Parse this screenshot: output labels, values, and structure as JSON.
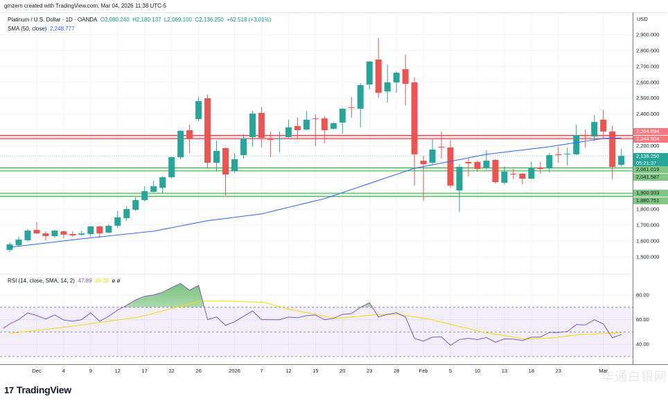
{
  "credit": "gmzern created with TradingView.com, Mar 04, 2026 11:38 UTC-5",
  "legend": {
    "symbol": "Platinum / U.S. Dollar · 1D · OANDA",
    "open": "O2,080.240",
    "high": "H2,180.137",
    "low": "L2,069.100",
    "close": "C2,136.250",
    "change": "+62.518 (+3.01%)",
    "sma_label": "SMA (50, close)",
    "sma_value": "2,248.777"
  },
  "rsi_legend": {
    "label": "RSI (14, close, SMA, 14, 2)",
    "rsi_value": "47.89",
    "sma_value": "49.28",
    "extra": "ø ø"
  },
  "currency": "USD",
  "brand": "TradingView",
  "watermark": "华通白银网",
  "colors": {
    "up": "#26a69a",
    "down": "#ef5350",
    "sma": "#2962ff",
    "rsi": "#7e57c2",
    "rsi_sma": "#f5d90a",
    "resistance": "#f23645",
    "support": "#4caf50"
  },
  "price_tags": [
    {
      "label": "2,264.894",
      "kind": "resistance"
    },
    {
      "label": "2,244.504",
      "kind": "resistance"
    },
    {
      "label": "2,200.000",
      "kind": "plain"
    },
    {
      "label": "2,136.250",
      "sub": "05:21:37",
      "kind": "last"
    },
    {
      "label": "2,061.019",
      "kind": "support"
    },
    {
      "label": "2,041.587",
      "kind": "support"
    },
    {
      "label": "1,900.933",
      "kind": "support"
    },
    {
      "label": "1,880.751",
      "kind": "support"
    }
  ],
  "chart_data": [
    {
      "type": "candlestick",
      "title": "Platinum / U.S. Dollar · 1D · OANDA",
      "ylabel": "USD",
      "ylim": [
        1440,
        2960
      ],
      "yticks": [
        2900,
        2800,
        2700,
        2600,
        2500,
        2400,
        1800,
        1700,
        1600,
        1500
      ],
      "last_price": 2136.25,
      "levels": {
        "resistance": [
          2264.894,
          2244.504
        ],
        "support_upper": [
          2061.019,
          2041.587
        ],
        "support_lower": [
          1900.933,
          1880.751
        ]
      },
      "xticks": [
        {
          "index": 3,
          "label": "Dec"
        },
        {
          "index": 6,
          "label": "4"
        },
        {
          "index": 9,
          "label": "9"
        },
        {
          "index": 12,
          "label": "12"
        },
        {
          "index": 15,
          "label": "17"
        },
        {
          "index": 18,
          "label": "22"
        },
        {
          "index": 21,
          "label": "26"
        },
        {
          "index": 25,
          "label": "2026"
        },
        {
          "index": 28,
          "label": "7"
        },
        {
          "index": 31,
          "label": "12"
        },
        {
          "index": 34,
          "label": "15"
        },
        {
          "index": 37,
          "label": "20"
        },
        {
          "index": 40,
          "label": "23"
        },
        {
          "index": 43,
          "label": "28"
        },
        {
          "index": 46,
          "label": "Feb"
        },
        {
          "index": 49,
          "label": "5"
        },
        {
          "index": 52,
          "label": "10"
        },
        {
          "index": 55,
          "label": "13"
        },
        {
          "index": 58,
          "label": "18"
        },
        {
          "index": 61,
          "label": "23"
        },
        {
          "index": 66,
          "label": "Mar"
        }
      ],
      "ohlc": [
        [
          1544,
          1592,
          1531,
          1579
        ],
        [
          1574,
          1627,
          1566,
          1609
        ],
        [
          1605,
          1675,
          1596,
          1666
        ],
        [
          1670,
          1718,
          1644,
          1648
        ],
        [
          1648,
          1661,
          1605,
          1631
        ],
        [
          1631,
          1670,
          1622,
          1666
        ],
        [
          1661,
          1666,
          1618,
          1640
        ],
        [
          1644,
          1661,
          1627,
          1635
        ],
        [
          1640,
          1666,
          1631,
          1648
        ],
        [
          1644,
          1696,
          1627,
          1692
        ],
        [
          1692,
          1696,
          1622,
          1648
        ],
        [
          1653,
          1705,
          1648,
          1696
        ],
        [
          1696,
          1788,
          1683,
          1749
        ],
        [
          1744,
          1818,
          1727,
          1801
        ],
        [
          1797,
          1875,
          1788,
          1858
        ],
        [
          1858,
          1945,
          1849,
          1914
        ],
        [
          1910,
          1980,
          1906,
          1945
        ],
        [
          1936,
          2011,
          1901,
          2002
        ],
        [
          2002,
          2132,
          1993,
          2128
        ],
        [
          2128,
          2298,
          2115,
          2294
        ],
        [
          2298,
          2333,
          2154,
          2246
        ],
        [
          2368,
          2507,
          2355,
          2481
        ],
        [
          2499,
          2521,
          2063,
          2093
        ],
        [
          2093,
          2233,
          2037,
          2168
        ],
        [
          2185,
          2189,
          1888,
          2019
        ],
        [
          2041,
          2154,
          2032,
          2115
        ],
        [
          2141,
          2272,
          2119,
          2246
        ],
        [
          2254,
          2420,
          2194,
          2403
        ],
        [
          2407,
          2442,
          2189,
          2250
        ],
        [
          2241,
          2289,
          2128,
          2237
        ],
        [
          2241,
          2289,
          2159,
          2246
        ],
        [
          2254,
          2364,
          2250,
          2316
        ],
        [
          2324,
          2377,
          2237,
          2298
        ],
        [
          2302,
          2420,
          2298,
          2364
        ],
        [
          2372,
          2398,
          2198,
          2368
        ],
        [
          2372,
          2385,
          2215,
          2298
        ],
        [
          2307,
          2350,
          2302,
          2342
        ],
        [
          2346,
          2438,
          2276,
          2433
        ],
        [
          2442,
          2507,
          2377,
          2438
        ],
        [
          2433,
          2595,
          2315,
          2582
        ],
        [
          2586,
          2734,
          2556,
          2730
        ],
        [
          2743,
          2878,
          2503,
          2534
        ],
        [
          2542,
          2712,
          2473,
          2599
        ],
        [
          2599,
          2669,
          2534,
          2660
        ],
        [
          2682,
          2774,
          2455,
          2590
        ],
        [
          2599,
          2630,
          1949,
          2146
        ],
        [
          2106,
          2137,
          1853,
          2084
        ],
        [
          2093,
          2246,
          2080,
          2176
        ],
        [
          2194,
          2289,
          2119,
          2189
        ],
        [
          2189,
          2237,
          1936,
          1949
        ],
        [
          1919,
          2084,
          1784,
          2067
        ],
        [
          2098,
          2124,
          2006,
          2089
        ],
        [
          2098,
          2106,
          2037,
          2054
        ],
        [
          2063,
          2172,
          2050,
          2106
        ],
        [
          2111,
          2115,
          1962,
          1971
        ],
        [
          1967,
          2071,
          1954,
          2037
        ],
        [
          2024,
          2054,
          1989,
          2019
        ],
        [
          2024,
          2028,
          1958,
          1993
        ],
        [
          1993,
          2098,
          1989,
          2058
        ],
        [
          2063,
          2098,
          2024,
          2054
        ],
        [
          2058,
          2154,
          2032,
          2141
        ],
        [
          2146,
          2194,
          2093,
          2141
        ],
        [
          2146,
          2189,
          2076,
          2150
        ],
        [
          2146,
          2333,
          2141,
          2268
        ],
        [
          2246,
          2302,
          2189,
          2241
        ],
        [
          2259,
          2394,
          2229,
          2350
        ],
        [
          2364,
          2425,
          2246,
          2290
        ],
        [
          2290,
          2324,
          1989,
          2067
        ],
        [
          2080.24,
          2180.137,
          2069.1,
          2136.25
        ]
      ],
      "sma50": {
        "name": "SMA (50, close)",
        "points": [
          [
            0,
            1561
          ],
          [
            8,
            1614
          ],
          [
            16,
            1662
          ],
          [
            22,
            1728
          ],
          [
            28,
            1771
          ],
          [
            35,
            1867
          ],
          [
            45,
            2058
          ],
          [
            53,
            2146
          ],
          [
            60,
            2194
          ],
          [
            66,
            2246
          ],
          [
            68,
            2248.777
          ]
        ]
      }
    },
    {
      "type": "line",
      "title": "RSI (14, close, SMA, 14, 2)",
      "ylim": [
        22,
        100
      ],
      "yticks": [
        80,
        60,
        40
      ],
      "bands": {
        "upper": 70,
        "middle": 50,
        "lower": 30
      },
      "rsi": [
        56.5,
        60,
        65.5,
        63.3,
        60.4,
        63.8,
        59.7,
        58.7,
        60,
        65.5,
        58.7,
        62.7,
        67.7,
        71.6,
        76,
        78.9,
        80,
        82.2,
        86,
        89.3,
        83.8,
        87.7,
        60,
        62.2,
        55.4,
        58.3,
        62.7,
        67,
        60,
        60,
        59.9,
        62.1,
        61.5,
        63.2,
        63.8,
        59.9,
        61,
        64.3,
        64.9,
        69.9,
        73.7,
        62.2,
        64.3,
        65.5,
        62.2,
        44.8,
        42.5,
        45.8,
        46,
        39.2,
        43.8,
        44.8,
        43.8,
        45.5,
        41.6,
        44.4,
        44.2,
        43.1,
        45.8,
        45.8,
        49.6,
        49.5,
        50.4,
        56,
        55.7,
        59.9,
        56.5,
        45.3,
        47.89
      ],
      "rsi_sma_points": [
        [
          0,
          48.8
        ],
        [
          6.6,
          54.3
        ],
        [
          14.3,
          62
        ],
        [
          21.2,
          75
        ],
        [
          24.3,
          75
        ],
        [
          28.2,
          74
        ],
        [
          31.2,
          68.2
        ],
        [
          36.2,
          61
        ],
        [
          40.5,
          63.8
        ],
        [
          43.2,
          64.3
        ],
        [
          46.6,
          60.4
        ],
        [
          52.8,
          49.6
        ],
        [
          57.4,
          44.2
        ],
        [
          60.5,
          45.3
        ],
        [
          63.5,
          48
        ],
        [
          68,
          49.28
        ]
      ]
    }
  ]
}
